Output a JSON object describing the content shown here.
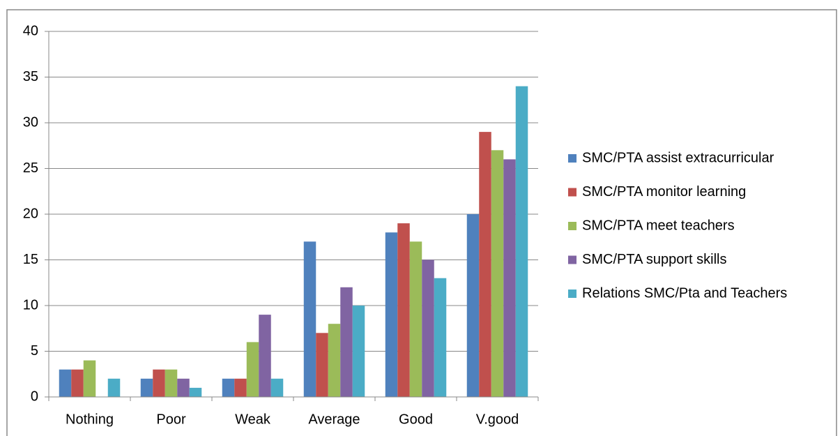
{
  "chart_data": {
    "type": "bar",
    "categories": [
      "Nothing",
      "Poor",
      "Weak",
      "Average",
      "Good",
      "V.good"
    ],
    "series": [
      {
        "name": "SMC/PTA assist extracurricular",
        "color": "#4f81bd",
        "values": [
          3,
          2,
          2,
          17,
          18,
          20
        ]
      },
      {
        "name": "SMC/PTA monitor learning",
        "color": "#c0504d",
        "values": [
          3,
          3,
          2,
          7,
          19,
          29
        ]
      },
      {
        "name": "SMC/PTA meet teachers",
        "color": "#9bbb59",
        "values": [
          4,
          3,
          6,
          8,
          17,
          27
        ]
      },
      {
        "name": "SMC/PTA support skills",
        "color": "#8064a2",
        "values": [
          0,
          2,
          9,
          12,
          15,
          26
        ]
      },
      {
        "name": "Relations SMC/Pta and Teachers",
        "color": "#4bacc6",
        "values": [
          2,
          1,
          2,
          10,
          13,
          34
        ]
      }
    ],
    "ylim": [
      0,
      40
    ],
    "yticks": [
      0,
      5,
      10,
      15,
      20,
      25,
      30,
      35,
      40
    ],
    "grid": true,
    "legend": "right"
  }
}
